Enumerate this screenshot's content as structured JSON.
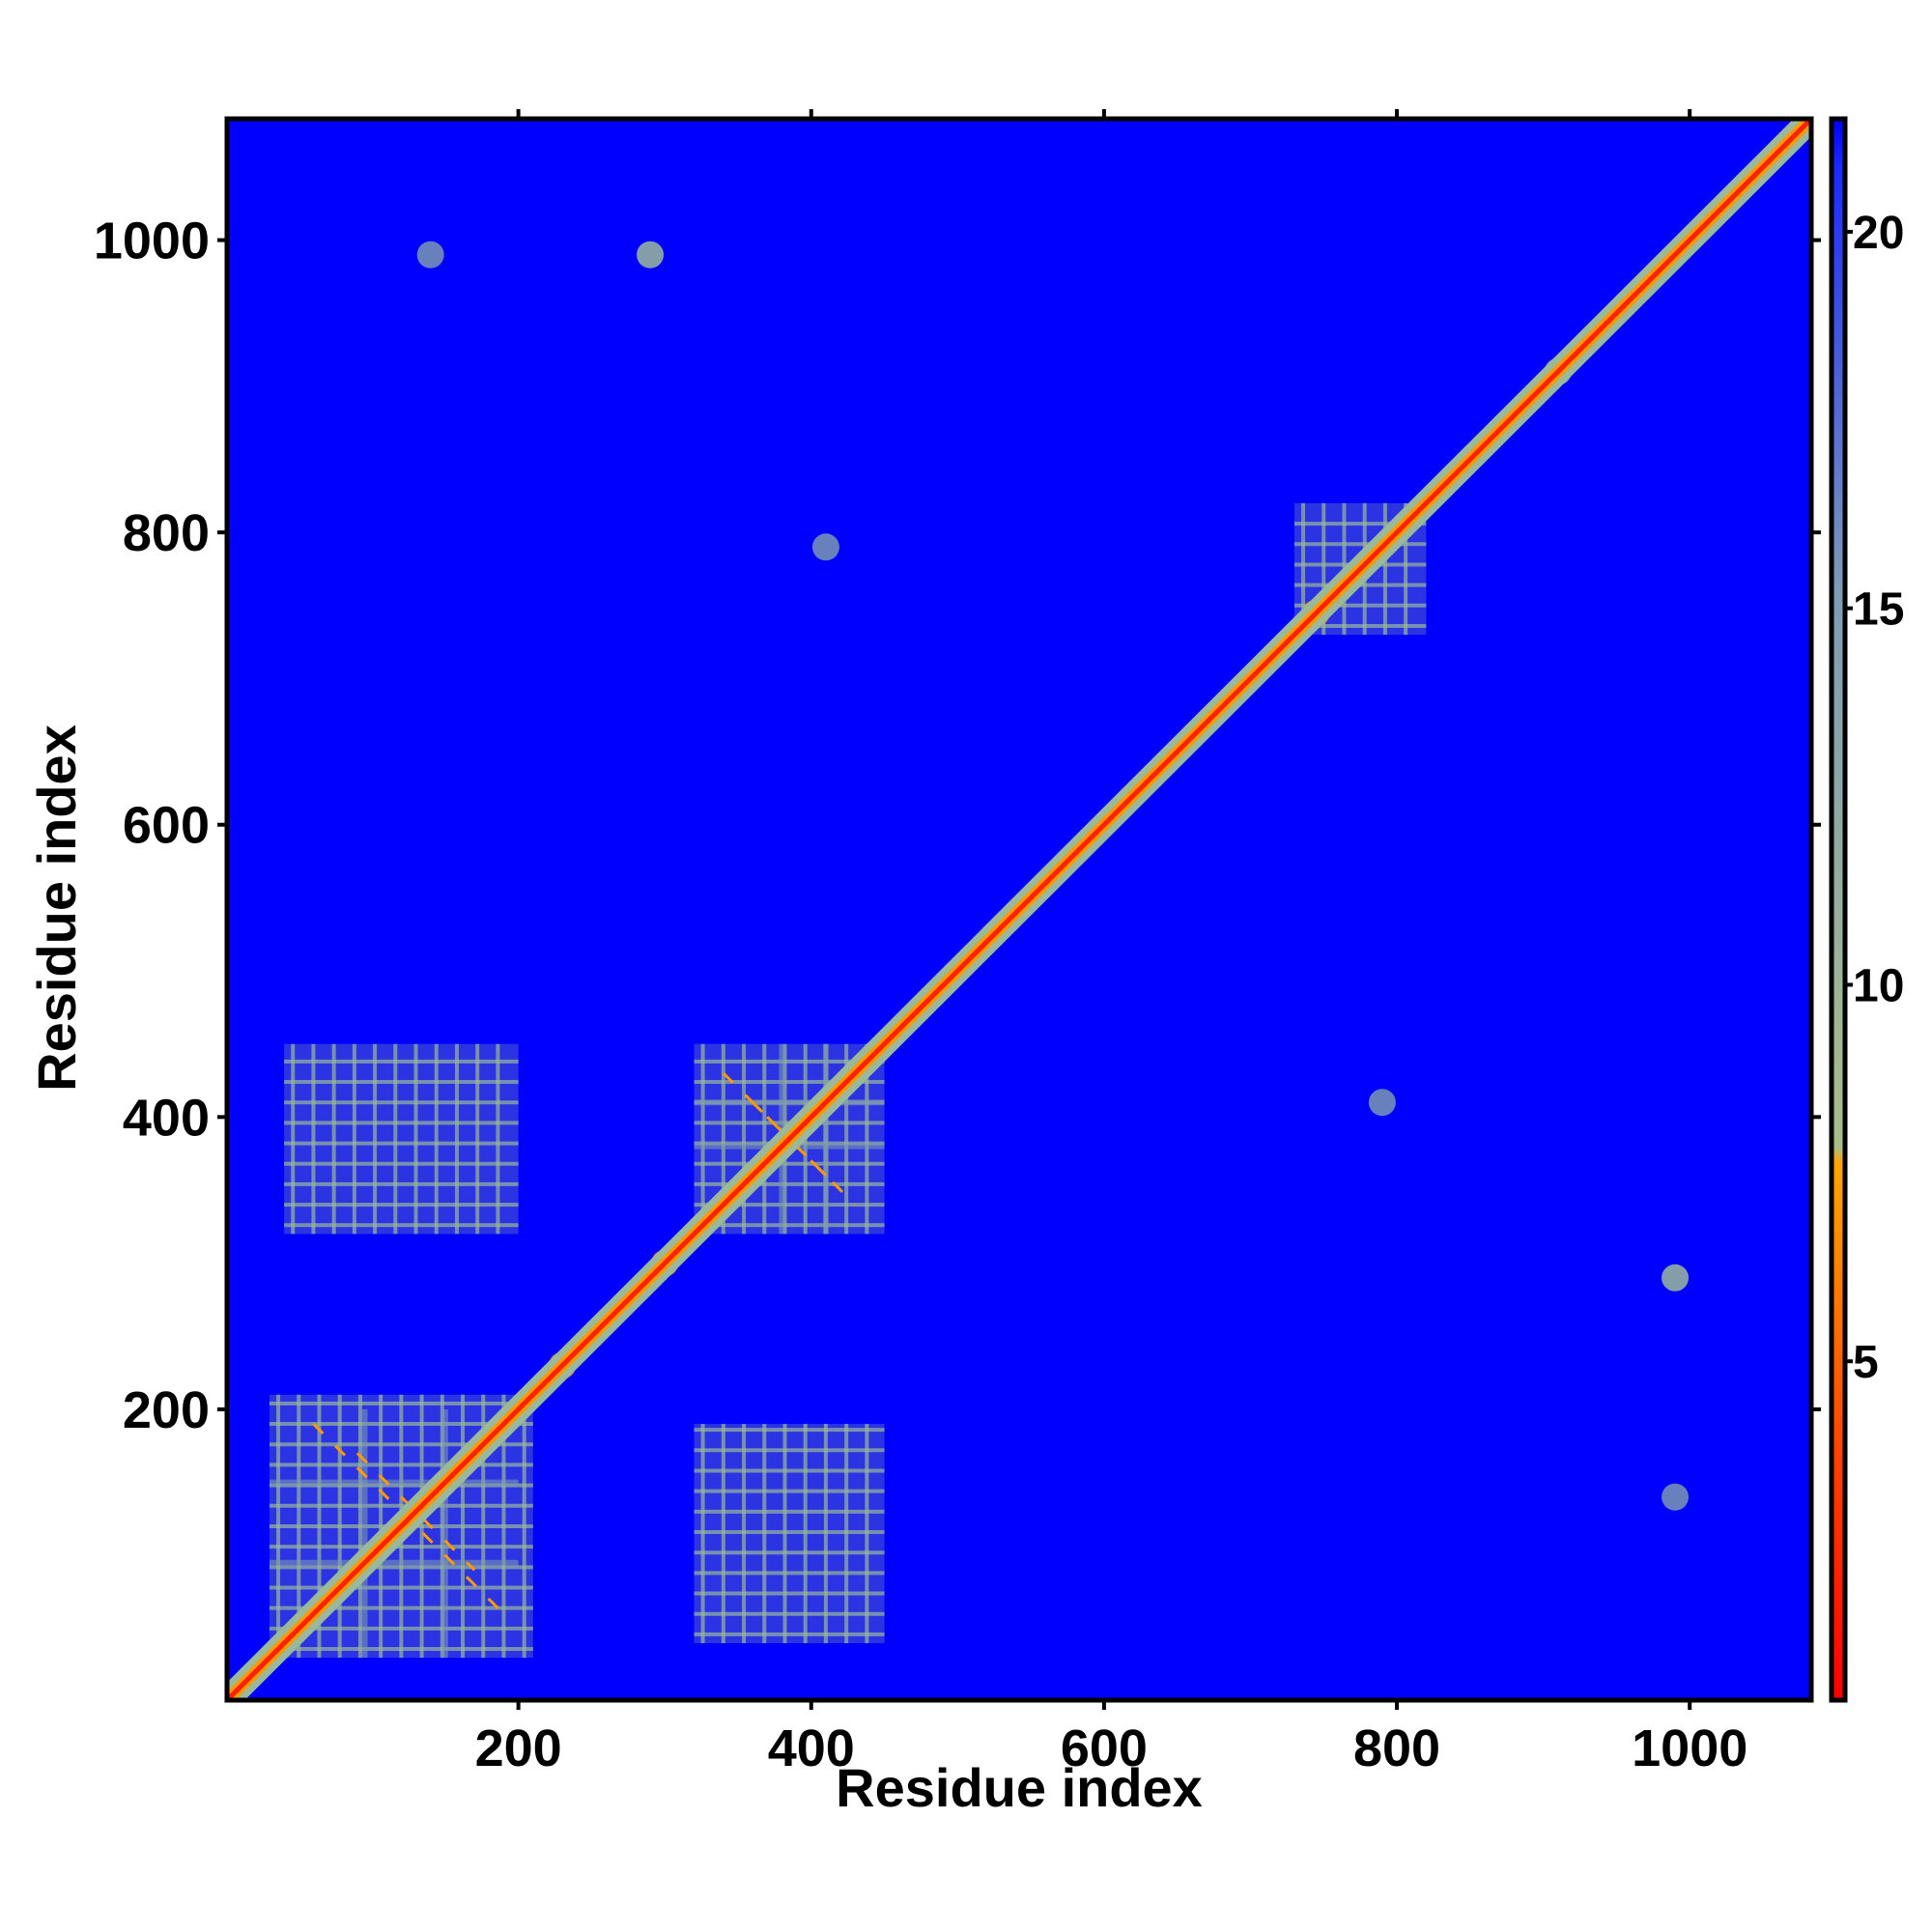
{
  "chart_data": {
    "type": "heatmap",
    "title": "",
    "xlabel": "Residue index",
    "ylabel": "Residue index",
    "xlim": [
      1,
      1083
    ],
    "ylim": [
      1,
      1083
    ],
    "x_ticks": [
      200,
      400,
      600,
      800,
      1000
    ],
    "y_ticks": [
      200,
      400,
      600,
      800,
      1000
    ],
    "x_tick_labels": [
      "200",
      "400",
      "600",
      "800",
      "1000"
    ],
    "y_tick_labels": [
      "200",
      "400",
      "600",
      "800",
      "1000"
    ],
    "background_value": 21.5,
    "colorbar": {
      "range": [
        0.5,
        21.5
      ],
      "ticks": [
        5,
        10,
        15,
        20
      ],
      "tick_labels": [
        "5",
        "10",
        "15",
        "20"
      ],
      "colors": [
        "#ff0000",
        "#ff5a00",
        "#ffa500",
        "#a8bd8a",
        "#6b8ea6",
        "#0000ff"
      ]
    },
    "colors": {
      "background": "#0000ff",
      "diagonal": "#ff2200",
      "near": "#ff9900",
      "contact": "#9ab89a",
      "weak": "#7a96b0"
    },
    "diagonal": {
      "start": 1,
      "end": 1083,
      "value": 3
    },
    "blocks": [
      {
        "x": [
          30,
          210
        ],
        "y": [
          30,
          210
        ],
        "value": 10
      },
      {
        "x": [
          320,
          450
        ],
        "y": [
          320,
          450
        ],
        "value": 10
      },
      {
        "x": [
          320,
          450
        ],
        "y": [
          40,
          190
        ],
        "value": 11
      },
      {
        "x": [
          40,
          200
        ],
        "y": [
          320,
          450
        ],
        "value": 11
      },
      {
        "x": [
          730,
          820
        ],
        "y": [
          730,
          820
        ],
        "value": 11
      }
    ],
    "lines": [
      {
        "pos": 95,
        "range": [
          30,
          200
        ],
        "value": 13
      },
      {
        "pos": 150,
        "range": [
          30,
          200
        ],
        "value": 13
      },
      {
        "pos": 380,
        "range": [
          320,
          450
        ],
        "value": 13
      },
      {
        "pos": 410,
        "range": [
          320,
          450
        ],
        "value": 13
      }
    ],
    "spots": [
      {
        "x": 290,
        "y": 990,
        "value": 12
      },
      {
        "x": 990,
        "y": 290,
        "value": 12
      },
      {
        "x": 745,
        "y": 745,
        "value": 6
      },
      {
        "x": 790,
        "y": 410,
        "value": 13
      },
      {
        "x": 410,
        "y": 790,
        "value": 13
      },
      {
        "x": 230,
        "y": 230,
        "value": 8
      },
      {
        "x": 300,
        "y": 300,
        "value": 7
      },
      {
        "x": 910,
        "y": 910,
        "value": 10
      },
      {
        "x": 990,
        "y": 140,
        "value": 15
      },
      {
        "x": 140,
        "y": 990,
        "value": 15
      }
    ]
  }
}
